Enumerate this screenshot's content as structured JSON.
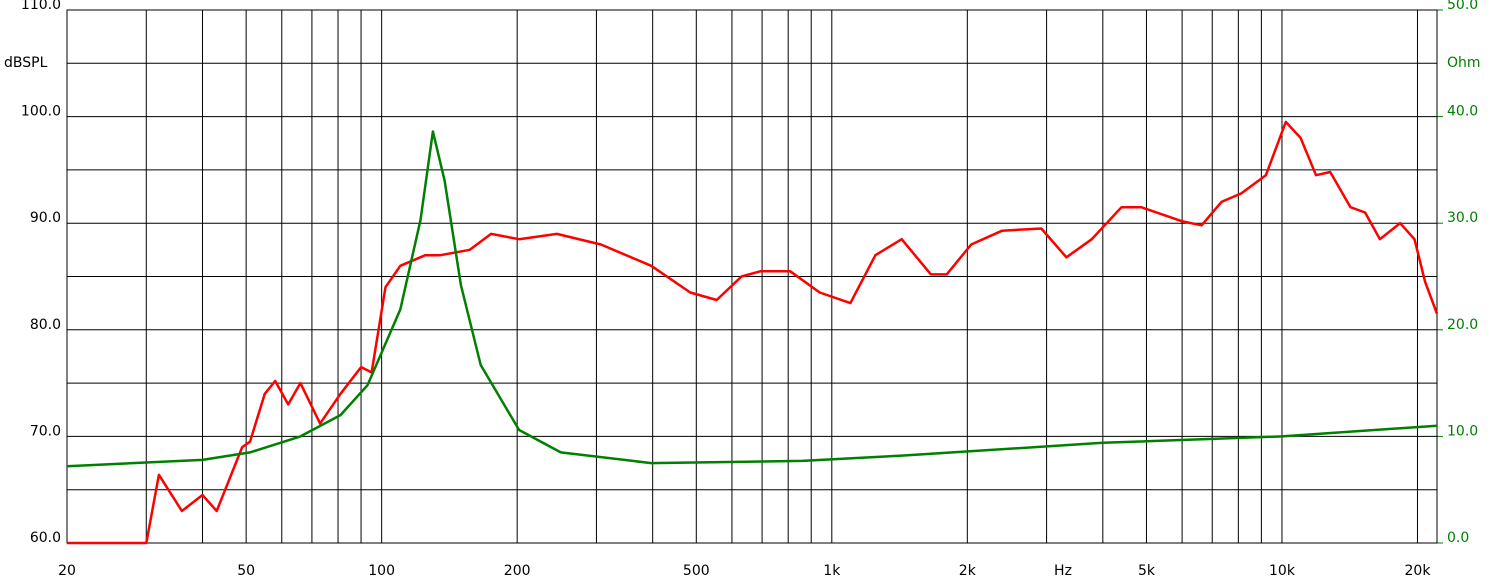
{
  "chart_data": {
    "type": "line",
    "x_label": "Hz",
    "y_label": "dBSPL",
    "y2_label": "Ohm",
    "log_x": true,
    "grid": true,
    "xlim": [
      20,
      22100
    ],
    "ylim": [
      60,
      110
    ],
    "y2lim": [
      0,
      50
    ],
    "xticks": [
      20,
      50,
      100,
      200,
      500,
      {
        "value": 1000,
        "label": "1k"
      },
      {
        "value": 2000,
        "label": "2k"
      },
      {
        "value": 5000,
        "label": "5k"
      },
      {
        "value": 10000,
        "label": "10k"
      },
      {
        "value": 20000,
        "label": "20k"
      }
    ],
    "xgrid": [
      30,
      40,
      60,
      70,
      80,
      90,
      300,
      400,
      600,
      700,
      800,
      900,
      3000,
      4000,
      6000,
      7000,
      8000,
      9000
    ],
    "yticks": [
      {
        "value": 60,
        "label": "60.0"
      },
      {
        "value": 70,
        "label": "70.0"
      },
      {
        "value": 80,
        "label": "80.0"
      },
      {
        "value": 90,
        "label": "90.0"
      },
      {
        "value": 100,
        "label": "100.0"
      },
      {
        "value": 110,
        "label": "110.0"
      }
    ],
    "ygrid_minor": [
      65,
      75,
      85,
      95,
      105
    ],
    "y2ticks": [
      {
        "value": 0,
        "label": "0.0"
      },
      {
        "value": 10,
        "label": "10.0"
      },
      {
        "value": 20,
        "label": "20.0"
      },
      {
        "value": 30,
        "label": "30.0"
      },
      {
        "value": 40,
        "label": "40.0"
      },
      {
        "value": 50,
        "label": "50.0"
      }
    ],
    "y2color": "#008000",
    "series": [
      {
        "color": "#ff0000",
        "x": [
          20,
          30,
          32,
          36,
          40,
          43,
          49,
          51,
          55,
          58,
          62,
          66,
          73,
          81,
          90,
          95,
          102,
          110,
          125,
          135,
          157,
          175,
          202,
          245,
          307,
          397,
          485,
          555,
          630,
          695,
          808,
          940,
          1100,
          1250,
          1430,
          1660,
          1800,
          2040,
          2390,
          2920,
          3320,
          3780,
          4400,
          4870,
          5980,
          6630,
          7340,
          8120,
          9210,
          10200,
          11000,
          11900,
          12800,
          14200,
          15300,
          16500,
          18300,
          19700,
          20800,
          22100
        ],
        "values": [
          60,
          60,
          66.4,
          63,
          64.5,
          63,
          69,
          69.5,
          74,
          75.2,
          73,
          75,
          71.2,
          74,
          76.5,
          76,
          84,
          86,
          87,
          87,
          87.5,
          89,
          88.5,
          89,
          88,
          86,
          83.5,
          82.8,
          85,
          85.5,
          85.5,
          83.5,
          82.5,
          87,
          88.5,
          85.2,
          85.2,
          88,
          89.3,
          89.5,
          86.8,
          88.5,
          91.5,
          91.5,
          90.2,
          89.8,
          92,
          92.8,
          94.5,
          99.5,
          98,
          94.5,
          94.8,
          91.5,
          91,
          88.5,
          90,
          88.5,
          84.5,
          81.5
        ]
      },
      {
        "color": "#008000",
        "axis": "y2",
        "x": [
          20,
          40,
          51,
          66,
          81,
          93,
          110,
          122,
          130,
          138,
          150,
          166,
          202,
          250,
          397,
          860,
          1430,
          4000,
          10000,
          22100
        ],
        "values": [
          7.2,
          7.8,
          8.5,
          10,
          12,
          14.8,
          21.9,
          30.3,
          38.6,
          34,
          24.2,
          16.7,
          10.6,
          8.5,
          7.5,
          7.7,
          8.2,
          9.4,
          10,
          11
        ]
      }
    ]
  }
}
